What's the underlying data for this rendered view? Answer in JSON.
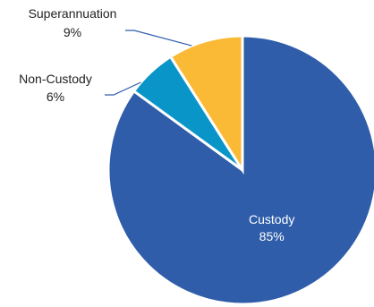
{
  "chart_data": {
    "type": "pie",
    "slices": [
      {
        "label": "Custody",
        "value": 85,
        "value_label": "85%",
        "color": "#2F5DAA",
        "label_color": "#ffffff",
        "label_position": "inside"
      },
      {
        "label": "Non-Custody",
        "value": 6,
        "value_label": "6%",
        "color": "#0A95C8",
        "label_color": "#222222",
        "label_position": "outside-left"
      },
      {
        "label": "Superannuation",
        "value": 9,
        "value_label": "9%",
        "color": "#FBBA36",
        "label_color": "#222222",
        "label_position": "outside-top-left"
      }
    ],
    "start_angle_deg": 0,
    "direction": "clockwise",
    "leader_line_color": "#2F5DAA",
    "legend": false
  }
}
